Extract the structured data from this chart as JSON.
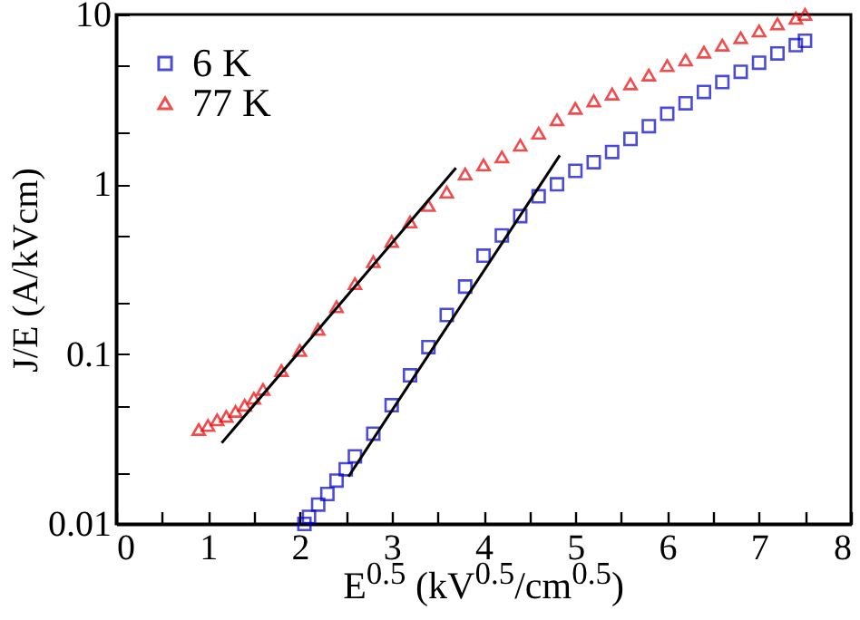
{
  "chart_data": {
    "type": "scatter",
    "xlabel": "E$^{0.5}$ (kV$^{0.5}$/cm$^{0.5}$)",
    "ylabel": "J/E (A/kVcm)",
    "log": "y",
    "xlim": [
      0,
      8
    ],
    "ylim": [
      0.01,
      10
    ],
    "xticks": [
      0,
      {
        "value": 0.5,
        "label": null
      },
      1,
      {
        "value": 1.5,
        "label": null
      },
      2,
      {
        "value": 2.5,
        "label": null
      },
      3,
      {
        "value": 3.5,
        "label": null
      },
      4,
      {
        "value": 4.5,
        "label": null
      },
      5,
      {
        "value": 5.5,
        "label": null
      },
      6,
      {
        "value": 6.5,
        "label": null
      },
      7,
      {
        "value": 7.5,
        "label": null
      },
      8
    ],
    "yticks": [
      0.01,
      {
        "value": 0.02,
        "label": null
      },
      {
        "value": 0.05,
        "label": null
      },
      0.1,
      {
        "value": 0.2,
        "label": null
      },
      {
        "value": 0.5,
        "label": null
      },
      1,
      {
        "value": 2,
        "label": null
      },
      {
        "value": 5,
        "label": null
      },
      10
    ],
    "grid": false,
    "legend": "top left",
    "series": [
      {
        "name": "6 K",
        "color": "#0000cc",
        "marker": "square",
        "x": [
          2.05,
          2.1,
          2.2,
          2.3,
          2.4,
          2.5,
          2.6,
          2.8,
          3.0,
          3.2,
          3.4,
          3.6,
          3.8,
          4.0,
          4.2,
          4.4,
          4.6,
          4.8,
          5.0,
          5.2,
          5.4,
          5.6,
          5.8,
          6.0,
          6.2,
          6.4,
          6.6,
          6.8,
          7.0,
          7.2,
          7.4,
          7.5
        ],
        "values": [
          0.01,
          0.011,
          0.013,
          0.015,
          0.018,
          0.021,
          0.025,
          0.034,
          0.05,
          0.075,
          0.11,
          0.17,
          0.25,
          0.38,
          0.5,
          0.65,
          0.85,
          1.0,
          1.2,
          1.35,
          1.55,
          1.85,
          2.2,
          2.6,
          3.0,
          3.5,
          4.0,
          4.6,
          5.2,
          5.9,
          6.6,
          7.0
        ]
      },
      {
        "name": "77 K",
        "color": "#ee0000",
        "marker": "triangle",
        "x": [
          0.9,
          1.0,
          1.1,
          1.2,
          1.3,
          1.4,
          1.5,
          1.6,
          1.8,
          2.0,
          2.2,
          2.4,
          2.6,
          2.8,
          3.0,
          3.2,
          3.4,
          3.6,
          3.8,
          4.0,
          4.2,
          4.4,
          4.6,
          4.8,
          5.0,
          5.2,
          5.4,
          5.6,
          5.8,
          6.0,
          6.2,
          6.4,
          6.6,
          6.8,
          7.0,
          7.2,
          7.4,
          7.5
        ],
        "values": [
          0.036,
          0.038,
          0.041,
          0.043,
          0.046,
          0.05,
          0.055,
          0.062,
          0.08,
          0.105,
          0.14,
          0.19,
          0.26,
          0.35,
          0.46,
          0.6,
          0.75,
          0.9,
          1.15,
          1.3,
          1.45,
          1.7,
          2.0,
          2.4,
          2.8,
          3.1,
          3.4,
          3.9,
          4.4,
          5.0,
          5.4,
          6.0,
          6.6,
          7.3,
          8.0,
          8.8,
          9.5,
          10
        ]
      },
      {
        "type": "line",
        "color": "#000000",
        "x": [
          1.15,
          3.7
        ],
        "values": [
          0.03,
          1.25
        ]
      },
      {
        "type": "line",
        "color": "#000000",
        "x": [
          2.53,
          4.83
        ],
        "values": [
          0.019,
          1.48
        ]
      }
    ]
  }
}
